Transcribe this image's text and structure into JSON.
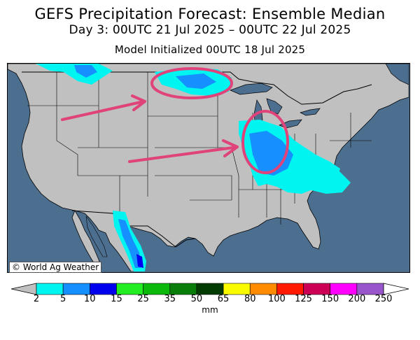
{
  "header": {
    "title": "GEFS Precipitation Forecast: Ensemble Median",
    "period": "Day 3: 00UTC 21 Jul 2025 – 00UTC 22 Jul 2025",
    "init": "Model Initialized 00UTC 18 Jul 2025"
  },
  "map": {
    "credit": "© World Ag Weather",
    "colors": {
      "ocean": "#4d6f8f",
      "land": "#c0c0c0",
      "borders": "#000000",
      "annotation": "#e0427a"
    }
  },
  "legend": {
    "units": "mm",
    "labels": [
      "2",
      "5",
      "10",
      "15",
      "25",
      "35",
      "50",
      "65",
      "80",
      "100",
      "125",
      "150",
      "200",
      "250"
    ],
    "colors": [
      "#00f5f0",
      "#1690ff",
      "#0000ee",
      "#22ee22",
      "#0bb90b",
      "#087d08",
      "#033c03",
      "#fbfb00",
      "#ff8c00",
      "#ff1a00",
      "#cc0055",
      "#ff00ff",
      "#9955cc"
    ],
    "under_color": "#c0c0c0",
    "over_color": "#ffffff"
  }
}
